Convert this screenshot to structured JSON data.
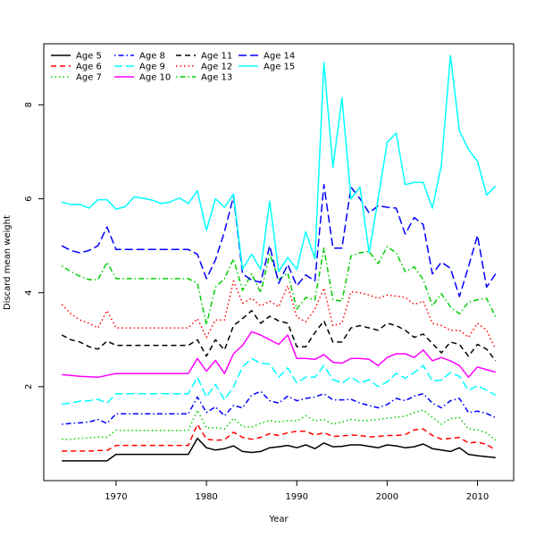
{
  "chart_data": {
    "type": "line",
    "title": "",
    "xlabel": "Year",
    "ylabel": "Discard mean weight",
    "xlim": [
      1962,
      2014
    ],
    "ylim": [
      0,
      9.3
    ],
    "xticks": [
      1970,
      1980,
      1990,
      2000,
      2010
    ],
    "yticks": [
      2,
      4,
      6,
      8
    ],
    "grid": false,
    "legend_placement": "top-left",
    "years": [
      1964,
      1965,
      1966,
      1967,
      1968,
      1969,
      1970,
      1971,
      1972,
      1973,
      1974,
      1975,
      1976,
      1977,
      1978,
      1979,
      1980,
      1981,
      1982,
      1983,
      1984,
      1985,
      1986,
      1987,
      1988,
      1989,
      1990,
      1991,
      1992,
      1993,
      1994,
      1995,
      1996,
      1997,
      1998,
      1999,
      2000,
      2001,
      2002,
      2003,
      2004,
      2005,
      2006,
      2007,
      2008,
      2009,
      2010,
      2011,
      2012
    ],
    "series": [
      {
        "name": "Age 5",
        "color": "#000000",
        "dash": "solid",
        "values": [
          0.42,
          0.42,
          0.42,
          0.42,
          0.42,
          0.42,
          0.56,
          0.56,
          0.56,
          0.56,
          0.56,
          0.56,
          0.56,
          0.56,
          0.56,
          0.9,
          0.7,
          0.65,
          0.68,
          0.74,
          0.62,
          0.6,
          0.62,
          0.7,
          0.72,
          0.75,
          0.7,
          0.76,
          0.68,
          0.8,
          0.72,
          0.73,
          0.76,
          0.76,
          0.73,
          0.7,
          0.76,
          0.74,
          0.7,
          0.72,
          0.78,
          0.68,
          0.65,
          0.62,
          0.7,
          0.56,
          0.53,
          0.51,
          0.49
        ]
      },
      {
        "name": "Age 6",
        "color": "#ff0000",
        "dash": "dashed",
        "values": [
          0.63,
          0.63,
          0.63,
          0.63,
          0.64,
          0.64,
          0.75,
          0.75,
          0.75,
          0.75,
          0.75,
          0.75,
          0.75,
          0.75,
          0.75,
          1.2,
          0.88,
          0.86,
          0.87,
          1.03,
          0.92,
          0.88,
          0.92,
          1.0,
          0.96,
          1.02,
          1.05,
          1.05,
          0.97,
          1.02,
          0.94,
          0.95,
          0.97,
          0.96,
          0.93,
          0.94,
          0.96,
          0.96,
          0.98,
          1.08,
          1.1,
          0.96,
          0.88,
          0.9,
          0.92,
          0.8,
          0.82,
          0.77,
          0.65
        ]
      },
      {
        "name": "Age 7",
        "color": "#00cd00",
        "dash": "dotted",
        "values": [
          0.88,
          0.88,
          0.9,
          0.91,
          0.93,
          0.92,
          1.07,
          1.07,
          1.07,
          1.07,
          1.07,
          1.07,
          1.07,
          1.07,
          1.07,
          1.5,
          1.12,
          1.13,
          1.1,
          1.33,
          1.15,
          1.14,
          1.22,
          1.28,
          1.25,
          1.28,
          1.27,
          1.38,
          1.27,
          1.3,
          1.2,
          1.25,
          1.3,
          1.28,
          1.28,
          1.3,
          1.33,
          1.35,
          1.37,
          1.45,
          1.5,
          1.35,
          1.2,
          1.32,
          1.34,
          1.1,
          1.08,
          1.02,
          0.86
        ]
      },
      {
        "name": "Age 8",
        "color": "#0000ff",
        "dash": "dotdash",
        "values": [
          1.2,
          1.22,
          1.23,
          1.25,
          1.3,
          1.22,
          1.42,
          1.42,
          1.42,
          1.42,
          1.42,
          1.42,
          1.42,
          1.42,
          1.42,
          1.78,
          1.45,
          1.57,
          1.38,
          1.6,
          1.55,
          1.82,
          1.9,
          1.7,
          1.65,
          1.8,
          1.7,
          1.75,
          1.78,
          1.85,
          1.72,
          1.72,
          1.73,
          1.65,
          1.6,
          1.55,
          1.62,
          1.75,
          1.7,
          1.8,
          1.85,
          1.65,
          1.55,
          1.7,
          1.75,
          1.45,
          1.48,
          1.43,
          1.34
        ]
      },
      {
        "name": "Age 9",
        "color": "#00ffff",
        "dash": "longdash",
        "values": [
          1.63,
          1.65,
          1.69,
          1.7,
          1.73,
          1.65,
          1.85,
          1.85,
          1.85,
          1.85,
          1.85,
          1.85,
          1.85,
          1.85,
          1.85,
          2.2,
          1.78,
          2.05,
          1.72,
          2.0,
          2.42,
          2.6,
          2.5,
          2.48,
          2.2,
          2.4,
          2.08,
          2.2,
          2.2,
          2.45,
          2.15,
          2.08,
          2.2,
          2.08,
          2.15,
          2.0,
          2.1,
          2.28,
          2.18,
          2.3,
          2.45,
          2.12,
          2.14,
          2.3,
          2.22,
          1.92,
          2.02,
          1.92,
          1.82
        ]
      },
      {
        "name": "Age 10",
        "color": "#ff00ff",
        "dash": "solid",
        "values": [
          2.26,
          2.24,
          2.22,
          2.21,
          2.2,
          2.24,
          2.28,
          2.28,
          2.28,
          2.28,
          2.28,
          2.28,
          2.28,
          2.28,
          2.28,
          2.6,
          2.33,
          2.56,
          2.28,
          2.7,
          2.88,
          3.17,
          3.1,
          3.0,
          2.9,
          3.1,
          2.6,
          2.6,
          2.58,
          2.68,
          2.52,
          2.5,
          2.6,
          2.6,
          2.58,
          2.45,
          2.62,
          2.7,
          2.7,
          2.62,
          2.78,
          2.55,
          2.62,
          2.55,
          2.45,
          2.2,
          2.42,
          2.36,
          2.31
        ]
      },
      {
        "name": "Age 11",
        "color": "#000000",
        "dash": "dashed",
        "values": [
          3.1,
          3.0,
          2.95,
          2.85,
          2.8,
          2.97,
          2.88,
          2.88,
          2.88,
          2.88,
          2.88,
          2.88,
          2.88,
          2.88,
          2.88,
          3.0,
          2.65,
          3.0,
          2.78,
          3.3,
          3.45,
          3.62,
          3.35,
          3.5,
          3.4,
          3.35,
          2.85,
          2.85,
          3.15,
          3.4,
          2.95,
          2.95,
          3.25,
          3.3,
          3.25,
          3.2,
          3.35,
          3.3,
          3.2,
          3.05,
          3.12,
          2.92,
          2.72,
          2.95,
          2.9,
          2.65,
          2.9,
          2.8,
          2.55
        ]
      },
      {
        "name": "Age 12",
        "color": "#ff0000",
        "dash": "dotted",
        "values": [
          3.75,
          3.55,
          3.42,
          3.35,
          3.25,
          3.62,
          3.25,
          3.25,
          3.25,
          3.25,
          3.25,
          3.25,
          3.25,
          3.25,
          3.25,
          3.45,
          3.05,
          3.42,
          3.42,
          4.25,
          3.78,
          3.88,
          3.72,
          3.82,
          3.7,
          4.15,
          3.48,
          3.38,
          3.65,
          4.1,
          3.3,
          3.35,
          4.02,
          4.0,
          3.95,
          3.88,
          3.95,
          3.93,
          3.9,
          3.75,
          3.82,
          3.35,
          3.3,
          3.2,
          3.2,
          3.05,
          3.35,
          3.2,
          2.8
        ]
      },
      {
        "name": "Age 13",
        "color": "#00cd00",
        "dash": "dotdash",
        "values": [
          4.57,
          4.45,
          4.35,
          4.28,
          4.28,
          4.65,
          4.3,
          4.3,
          4.3,
          4.3,
          4.3,
          4.3,
          4.3,
          4.3,
          4.3,
          4.2,
          3.32,
          4.12,
          4.3,
          4.72,
          4.05,
          4.4,
          4.0,
          4.82,
          4.28,
          4.42,
          3.65,
          3.9,
          3.85,
          4.95,
          3.85,
          3.82,
          4.78,
          4.85,
          4.88,
          4.62,
          4.98,
          4.85,
          4.45,
          4.55,
          4.28,
          3.72,
          3.98,
          3.7,
          3.55,
          3.8,
          3.85,
          3.88,
          3.48
        ]
      },
      {
        "name": "Age 14",
        "color": "#0000ff",
        "dash": "longdash",
        "values": [
          5.0,
          4.9,
          4.85,
          4.9,
          5.0,
          5.4,
          4.92,
          4.92,
          4.92,
          4.92,
          4.92,
          4.92,
          4.92,
          4.92,
          4.92,
          4.82,
          4.3,
          4.7,
          5.3,
          6.05,
          4.4,
          4.27,
          4.22,
          5.0,
          4.2,
          4.6,
          4.15,
          4.38,
          4.25,
          6.3,
          4.95,
          4.95,
          6.25,
          6.0,
          5.7,
          5.85,
          5.82,
          5.8,
          5.25,
          5.6,
          5.45,
          4.4,
          4.65,
          4.52,
          3.92,
          4.55,
          5.22,
          4.12,
          4.4
        ]
      },
      {
        "name": "Age 15",
        "color": "#00ffff",
        "dash": "solid",
        "values": [
          5.93,
          5.88,
          5.88,
          5.8,
          5.98,
          5.98,
          5.78,
          5.83,
          6.04,
          6.01,
          5.97,
          5.9,
          5.93,
          6.02,
          5.9,
          6.17,
          5.33,
          6.0,
          5.82,
          6.1,
          4.5,
          4.82,
          4.5,
          5.95,
          4.45,
          4.75,
          4.5,
          5.3,
          4.72,
          8.9,
          6.67,
          8.15,
          6.0,
          6.25,
          4.85,
          6.0,
          7.2,
          7.4,
          6.3,
          6.35,
          6.35,
          5.8,
          6.72,
          9.05,
          7.45,
          7.05,
          6.8,
          6.08,
          6.27
        ]
      }
    ]
  }
}
